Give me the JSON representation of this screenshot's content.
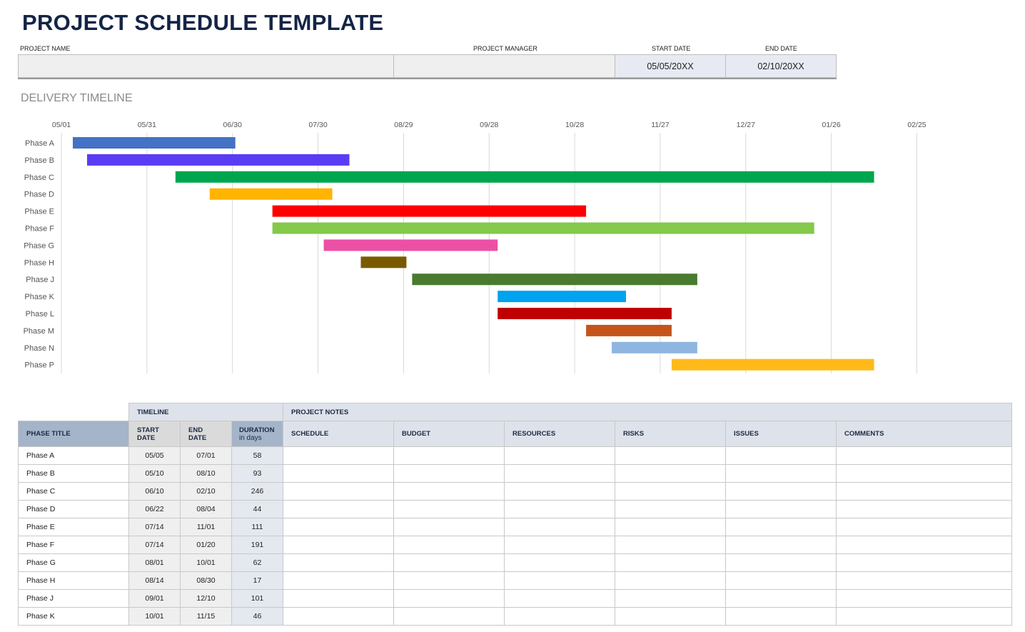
{
  "title": "PROJECT SCHEDULE TEMPLATE",
  "header": {
    "project_name_label": "PROJECT NAME",
    "project_manager_label": "PROJECT MANAGER",
    "start_date_label": "START DATE",
    "end_date_label": "END DATE",
    "project_name": "",
    "project_manager": "",
    "start_date": "05/05/20XX",
    "end_date": "02/10/20XX"
  },
  "section_title": "DELIVERY TIMELINE",
  "chart_data": {
    "type": "bar",
    "orientation": "horizontal-gantt",
    "x_ticks": [
      "05/01",
      "05/31",
      "06/30",
      "07/30",
      "08/29",
      "09/28",
      "10/28",
      "11/27",
      "12/27",
      "01/26",
      "02/25"
    ],
    "x_tick_interval_days": 30,
    "grid": true,
    "phases": [
      {
        "name": "Phase A",
        "start": "05/05",
        "end": "07/01",
        "color": "#4472c4"
      },
      {
        "name": "Phase B",
        "start": "05/10",
        "end": "08/10",
        "color": "#5b3cf5"
      },
      {
        "name": "Phase C",
        "start": "06/10",
        "end": "02/10",
        "color": "#00a64f"
      },
      {
        "name": "Phase D",
        "start": "06/22",
        "end": "08/04",
        "color": "#ffb400"
      },
      {
        "name": "Phase E",
        "start": "07/14",
        "end": "11/01",
        "color": "#ff0000"
      },
      {
        "name": "Phase F",
        "start": "07/14",
        "end": "01/20",
        "color": "#83c94a"
      },
      {
        "name": "Phase G",
        "start": "08/01",
        "end": "10/01",
        "color": "#ec50a5"
      },
      {
        "name": "Phase H",
        "start": "08/14",
        "end": "08/30",
        "color": "#7a5a00"
      },
      {
        "name": "Phase J",
        "start": "09/01",
        "end": "12/10",
        "color": "#4a7a30"
      },
      {
        "name": "Phase K",
        "start": "10/01",
        "end": "11/15",
        "color": "#00a3ef"
      },
      {
        "name": "Phase L",
        "start": "10/01",
        "end": "12/01",
        "color": "#bf0000"
      },
      {
        "name": "Phase M",
        "start": "11/01",
        "end": "12/01",
        "color": "#c5541a"
      },
      {
        "name": "Phase N",
        "start": "11/10",
        "end": "12/10",
        "color": "#8fb6e0"
      },
      {
        "name": "Phase P",
        "start": "12/01",
        "end": "02/10",
        "color": "#ffba1a"
      }
    ]
  },
  "table": {
    "group_timeline": "TIMELINE",
    "group_notes": "PROJECT NOTES",
    "col_phase": "PHASE TITLE",
    "col_start": "START DATE",
    "col_end": "END DATE",
    "col_duration": "DURATION",
    "col_duration_sub": "in days",
    "col_schedule": "SCHEDULE",
    "col_budget": "BUDGET",
    "col_resources": "RESOURCES",
    "col_risks": "RISKS",
    "col_issues": "ISSUES",
    "col_comments": "COMMENTS",
    "rows": [
      {
        "phase": "Phase A",
        "start": "05/05",
        "end": "07/01",
        "duration": "58"
      },
      {
        "phase": "Phase B",
        "start": "05/10",
        "end": "08/10",
        "duration": "93"
      },
      {
        "phase": "Phase C",
        "start": "06/10",
        "end": "02/10",
        "duration": "246"
      },
      {
        "phase": "Phase D",
        "start": "06/22",
        "end": "08/04",
        "duration": "44"
      },
      {
        "phase": "Phase E",
        "start": "07/14",
        "end": "11/01",
        "duration": "111"
      },
      {
        "phase": "Phase F",
        "start": "07/14",
        "end": "01/20",
        "duration": "191"
      },
      {
        "phase": "Phase G",
        "start": "08/01",
        "end": "10/01",
        "duration": "62"
      },
      {
        "phase": "Phase H",
        "start": "08/14",
        "end": "08/30",
        "duration": "17"
      },
      {
        "phase": "Phase J",
        "start": "09/01",
        "end": "12/10",
        "duration": "101"
      },
      {
        "phase": "Phase K",
        "start": "10/01",
        "end": "11/15",
        "duration": "46"
      }
    ]
  }
}
